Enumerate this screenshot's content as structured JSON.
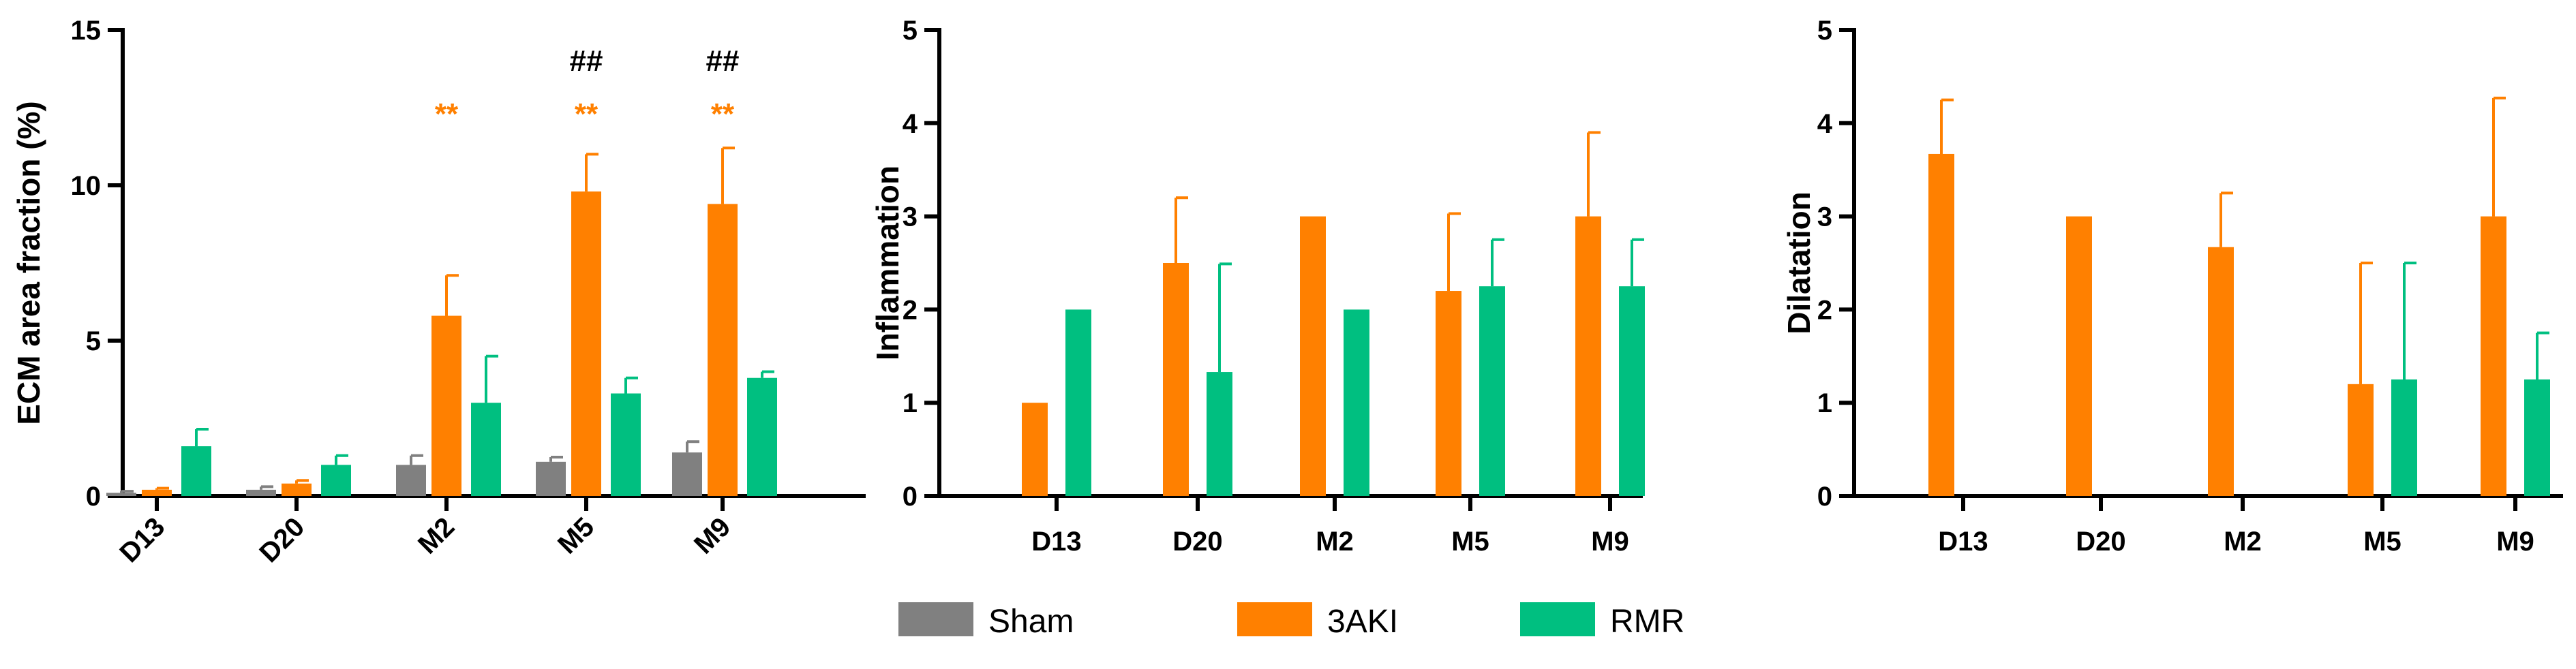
{
  "colors": {
    "Sham": "#808080",
    "3AKI": "#FF8000",
    "RMR": "#00BF80",
    "axis": "#000000",
    "hash": "#000000"
  },
  "legend": {
    "items": [
      "Sham",
      "3AKI",
      "RMR"
    ],
    "placement": "bottom-center"
  },
  "chart_data": [
    {
      "type": "bar",
      "title": "",
      "xlabel": "",
      "ylabel": "ECM area fraction (%)",
      "ylim": [
        0,
        15
      ],
      "yticks": [
        "0",
        "5",
        "10",
        "15"
      ],
      "categories": [
        "D13",
        "D20",
        "M2",
        "M5",
        "M9"
      ],
      "xtick_rotation": "diagonal",
      "series": [
        {
          "name": "Sham",
          "values": [
            0.1,
            0.2,
            1.0,
            1.1,
            1.4
          ],
          "errors": [
            0.05,
            0.1,
            0.3,
            0.15,
            0.35
          ]
        },
        {
          "name": "3AKI",
          "values": [
            0.2,
            0.4,
            5.8,
            9.8,
            9.4
          ],
          "errors": [
            0.05,
            0.1,
            1.3,
            1.2,
            1.8
          ]
        },
        {
          "name": "RMR",
          "values": [
            1.6,
            1.0,
            3.0,
            3.3,
            3.8
          ],
          "errors": [
            0.55,
            0.3,
            1.5,
            0.5,
            0.2
          ]
        }
      ],
      "annotations": [
        {
          "category": "M2",
          "series": "3AKI",
          "text": "**",
          "color": "#FF8000"
        },
        {
          "category": "M5",
          "series": "3AKI",
          "text": "**",
          "color": "#FF8000"
        },
        {
          "category": "M9",
          "series": "3AKI",
          "text": "**",
          "color": "#FF8000"
        },
        {
          "category": "M5",
          "series": "3AKI",
          "text": "##",
          "color": "#000000"
        },
        {
          "category": "M9",
          "series": "3AKI",
          "text": "##",
          "color": "#000000"
        }
      ]
    },
    {
      "type": "bar",
      "title": "",
      "xlabel": "",
      "ylabel": "Inflammation",
      "ylim": [
        0,
        5
      ],
      "yticks": [
        "0",
        "1",
        "2",
        "3",
        "4",
        "5"
      ],
      "categories": [
        "D13",
        "D20",
        "M2",
        "M5",
        "M9"
      ],
      "xtick_rotation": "none",
      "series": [
        {
          "name": "3AKI",
          "values": [
            1.0,
            2.5,
            3.0,
            2.2,
            3.0
          ],
          "errors": [
            0,
            0.7,
            0,
            0.83,
            0.9
          ]
        },
        {
          "name": "RMR",
          "values": [
            2.0,
            1.33,
            2.0,
            2.25,
            2.25
          ],
          "errors": [
            0,
            1.16,
            0,
            0.5,
            0.5
          ]
        }
      ],
      "annotations": []
    },
    {
      "type": "bar",
      "title": "",
      "xlabel": "",
      "ylabel": "Dilatation",
      "ylim": [
        0,
        5
      ],
      "yticks": [
        "0",
        "1",
        "2",
        "3",
        "4",
        "5"
      ],
      "categories": [
        "D13",
        "D20",
        "M2",
        "M5",
        "M9"
      ],
      "xtick_rotation": "none",
      "series": [
        {
          "name": "3AKI",
          "values": [
            3.67,
            3.0,
            2.67,
            1.2,
            3.0
          ],
          "errors": [
            0.58,
            0,
            0.58,
            1.3,
            1.27
          ]
        },
        {
          "name": "RMR",
          "values": [
            0,
            0,
            0,
            1.25,
            1.25
          ],
          "errors": [
            0,
            0,
            0,
            1.25,
            0.5
          ]
        }
      ],
      "annotations": []
    }
  ]
}
